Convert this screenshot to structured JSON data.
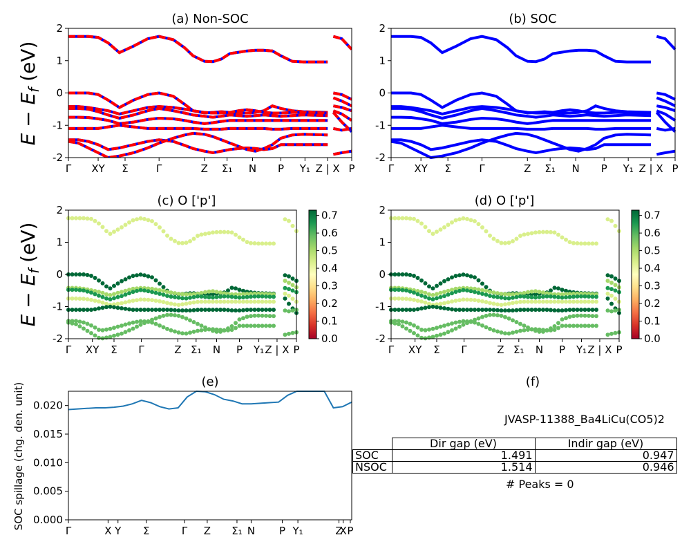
{
  "chart_data": [
    {
      "panel": "a",
      "type": "line",
      "title": "(a) Non-SOC",
      "ylabel": "E − E_f (eV)",
      "ylim": [
        -2,
        2
      ],
      "yticks": [
        -2,
        -1,
        0,
        1,
        2
      ],
      "xticks": [
        "Γ",
        "XY",
        "Σ",
        "Γ",
        "Z",
        "Σ₁",
        "N",
        "P",
        "Y₁",
        "Z | X",
        "P"
      ],
      "bands": [
        [
          1.75,
          1.75,
          1.75,
          1.72,
          1.55,
          1.25,
          1.45,
          1.68,
          1.75,
          1.65,
          1.4,
          1.15,
          0.98,
          0.97,
          1.05,
          1.22,
          1.26,
          1.3,
          1.32,
          1.32,
          1.3,
          1.15,
          0.98,
          0.96,
          0.96,
          null,
          1.75,
          1.68,
          1.35
        ],
        [
          0,
          0,
          0,
          -0.05,
          -0.22,
          -0.45,
          -0.22,
          -0.05,
          0,
          -0.1,
          -0.35,
          -0.55,
          -0.62,
          -0.6,
          -0.58,
          -0.6,
          -0.62,
          -0.62,
          -0.6,
          -0.55,
          -0.4,
          -0.48,
          -0.55,
          -0.58,
          -0.6,
          null,
          0,
          -0.05,
          -0.2
        ],
        [
          -0.42,
          -0.42,
          -0.45,
          -0.5,
          -0.55,
          -0.65,
          -0.55,
          -0.45,
          -0.42,
          -0.45,
          -0.5,
          -0.55,
          -0.6,
          -0.62,
          -0.62,
          -0.6,
          -0.55,
          -0.52,
          -0.55,
          -0.6,
          -0.62,
          -0.62,
          -0.6,
          -0.6,
          -0.62,
          null,
          -0.15,
          -0.25,
          -0.4
        ],
        [
          -0.48,
          -0.48,
          -0.5,
          -0.58,
          -0.68,
          -0.78,
          -0.68,
          -0.55,
          -0.48,
          -0.55,
          -0.62,
          -0.68,
          -0.72,
          -0.75,
          -0.72,
          -0.68,
          -0.7,
          -0.72,
          -0.7,
          -0.68,
          -0.7,
          -0.72,
          -0.7,
          -0.68,
          -0.7,
          null,
          -0.4,
          -0.45,
          -0.55
        ],
        [
          -0.75,
          -0.75,
          -0.76,
          -0.8,
          -0.85,
          -0.95,
          -0.9,
          -0.82,
          -0.78,
          -0.8,
          -0.85,
          -0.9,
          -0.95,
          -0.92,
          -0.88,
          -0.85,
          -0.85,
          -0.85,
          -0.85,
          -0.85,
          -0.85,
          -0.85,
          -0.85,
          -0.85,
          -0.85,
          null,
          -0.55,
          -0.65,
          -0.85
        ],
        [
          -1.1,
          -1.1,
          -1.1,
          -1.1,
          -1.05,
          -1.0,
          -1.05,
          -1.1,
          -1.1,
          -1.1,
          -1.1,
          -1.1,
          -1.12,
          -1.12,
          -1.12,
          -1.1,
          -1.1,
          -1.1,
          -1.1,
          -1.1,
          -1.12,
          -1.12,
          -1.1,
          -1.1,
          -1.1,
          null,
          -0.6,
          -0.9,
          -1.2
        ],
        [
          -1.45,
          -1.45,
          -1.5,
          -1.6,
          -1.75,
          -1.7,
          -1.6,
          -1.5,
          -1.45,
          -1.5,
          -1.62,
          -1.72,
          -1.8,
          -1.85,
          -1.8,
          -1.75,
          -1.72,
          -1.7,
          -1.72,
          -1.75,
          -1.72,
          -1.6,
          -1.6,
          -1.6,
          -1.6,
          null,
          -1.1,
          -1.15,
          -1.1
        ],
        [
          -1.5,
          -1.55,
          -1.7,
          -1.85,
          -2.0,
          -1.95,
          -1.85,
          -1.7,
          -1.55,
          -1.4,
          -1.3,
          -1.25,
          -1.28,
          -1.35,
          -1.45,
          -1.55,
          -1.65,
          -1.75,
          -1.8,
          -1.72,
          -1.6,
          -1.4,
          -1.3,
          -1.28,
          -1.3,
          null,
          -1.9,
          -1.85,
          -1.8
        ]
      ]
    },
    {
      "panel": "b",
      "type": "line",
      "title": "(b) SOC",
      "ylim": [
        -2,
        2
      ],
      "yticks": [
        -2,
        -1,
        0,
        1,
        2
      ],
      "xticks": [
        "Γ",
        "XY",
        "Σ",
        "Γ",
        "Z",
        "Σ₁",
        "N",
        "P",
        "Y₁",
        "Z | X",
        "P"
      ]
    },
    {
      "panel": "c",
      "type": "scatter",
      "title": "(c)  O ['p']",
      "ylabel": "E − E_f (eV)",
      "ylim": [
        -2,
        2
      ],
      "yticks": [
        -2,
        -1,
        0,
        1,
        2
      ],
      "xticks": [
        "Γ",
        "XY",
        "Σ",
        "Γ",
        "Z",
        "Σ₁",
        "N",
        "P",
        "Y₁",
        "Z | X",
        "P"
      ],
      "band_weights": [
        0.45,
        0.72,
        0.52,
        0.68,
        0.45,
        0.7,
        0.58,
        0.62
      ],
      "colorbar": {
        "min": 0.0,
        "max": 0.73,
        "ticks": [
          "0.0",
          "0.1",
          "0.2",
          "0.3",
          "0.4",
          "0.5",
          "0.6",
          "0.7"
        ],
        "colormap": "RdYlGn"
      }
    },
    {
      "panel": "d",
      "type": "scatter",
      "title": "(d) O ['p']",
      "ylim": [
        -2,
        2
      ],
      "yticks": [
        -2,
        -1,
        0,
        1,
        2
      ],
      "xticks": [
        "Γ",
        "XY",
        "Σ",
        "Γ",
        "Z",
        "Σ₁",
        "N",
        "P",
        "Y₁",
        "Z | X",
        "P"
      ],
      "colorbar": {
        "min": 0.0,
        "max": 0.73,
        "ticks": [
          "0.0",
          "0.1",
          "0.2",
          "0.3",
          "0.4",
          "0.5",
          "0.6",
          "0.7"
        ],
        "colormap": "RdYlGn"
      }
    },
    {
      "panel": "e",
      "type": "line",
      "title": "(e)",
      "ylabel": "SOC spillage (chg. den. unit)",
      "ylim": [
        0,
        0.0225
      ],
      "yticks": [
        "0.000",
        "0.005",
        "0.010",
        "0.015",
        "0.020"
      ],
      "xticks": [
        "Γ",
        "X",
        "Y",
        "Σ",
        "Γ",
        "Z",
        "Σ₁",
        "N",
        "P",
        "Y₁",
        "Z",
        "X",
        "P"
      ],
      "values": [
        0.0193,
        0.0194,
        0.0195,
        0.0196,
        0.0196,
        0.0197,
        0.0199,
        0.0203,
        0.0209,
        0.0205,
        0.0198,
        0.0194,
        0.0196,
        0.0215,
        0.0226,
        0.0224,
        0.0219,
        0.0211,
        0.0208,
        0.0203,
        0.0203,
        0.0204,
        0.0205,
        0.0206,
        0.0218,
        0.0226,
        0.0226,
        0.0226,
        0.0226,
        0.0196,
        0.0198,
        0.0206
      ]
    }
  ],
  "info": {
    "panel_title": "(f)",
    "material": "JVASP-11388_Ba4LiCu(CO5)2",
    "table": {
      "headers": [
        "Dir gap (eV)",
        "Indir gap (eV)"
      ],
      "rows": [
        {
          "label": "SOC",
          "dir": "1.491",
          "indir": "0.947"
        },
        {
          "label": "NSOC",
          "dir": "1.514",
          "indir": "0.946"
        }
      ]
    },
    "peaks": "# Peaks = 0"
  },
  "colors": {
    "nonsoc_red": "#ff0000",
    "nonsoc_blue": "#0000ff",
    "soc_blue": "#0000ff",
    "spillage_line": "#1f77b4"
  }
}
